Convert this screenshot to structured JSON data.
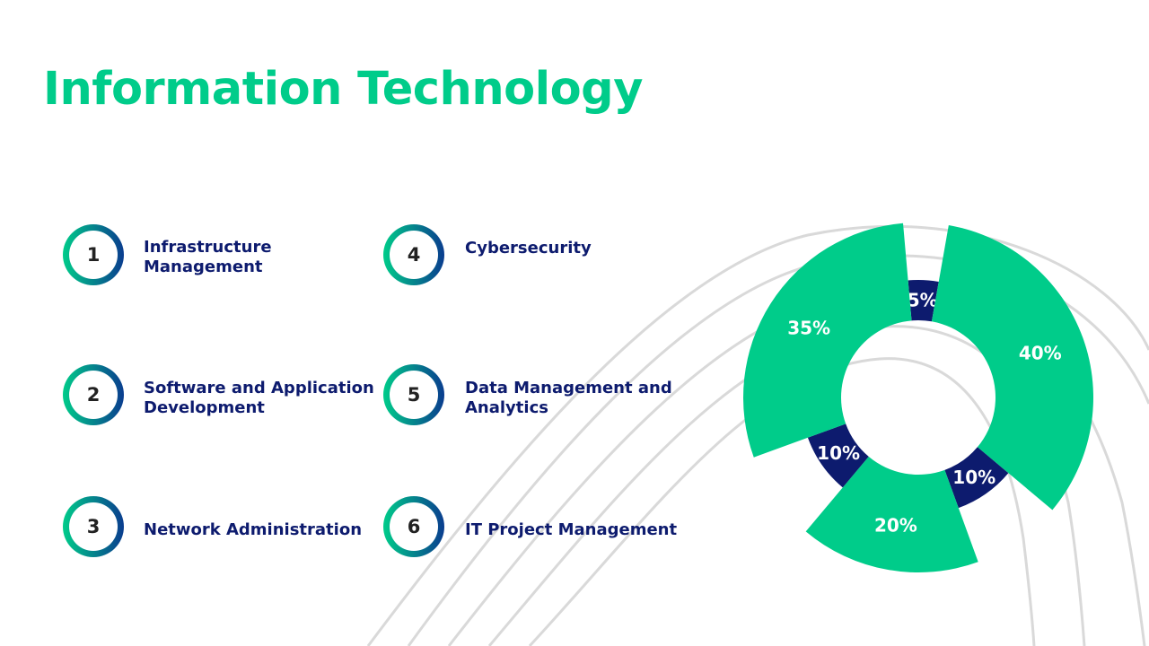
{
  "title": "Information Technology",
  "colors": {
    "accent": "#00cc8a",
    "navy": "#0d1b6e",
    "ring_end": "#0a3d8f"
  },
  "items": [
    {
      "number": "1",
      "line1": "Infrastructure",
      "line2": "Management"
    },
    {
      "number": "2",
      "line1": "Software and Application",
      "line2": "Development"
    },
    {
      "number": "3",
      "line1": "Network Administration",
      "line2": ""
    },
    {
      "number": "4",
      "line1": "Cybersecurity",
      "line2": ""
    },
    {
      "number": "5",
      "line1": "Data Management and",
      "line2": "Analytics"
    },
    {
      "number": "6",
      "line1": "IT Project Management",
      "line2": ""
    }
  ],
  "chart_data": {
    "type": "pie",
    "variant": "variable-radius donut",
    "title": "",
    "start_angle_deg": -5,
    "slices": [
      {
        "label": "5%",
        "value": 5,
        "color": "#0d1b6e",
        "size": "short"
      },
      {
        "label": "40%",
        "value": 40,
        "color": "#00cc8a",
        "size": "tall"
      },
      {
        "label": "10%",
        "value": 10,
        "color": "#0d1b6e",
        "size": "short"
      },
      {
        "label": "20%",
        "value": 20,
        "color": "#00cc8a",
        "size": "tall"
      },
      {
        "label": "10%",
        "value": 10,
        "color": "#0d1b6e",
        "size": "short"
      },
      {
        "label": "35%",
        "value": 35,
        "color": "#00cc8a",
        "size": "tall"
      }
    ]
  }
}
